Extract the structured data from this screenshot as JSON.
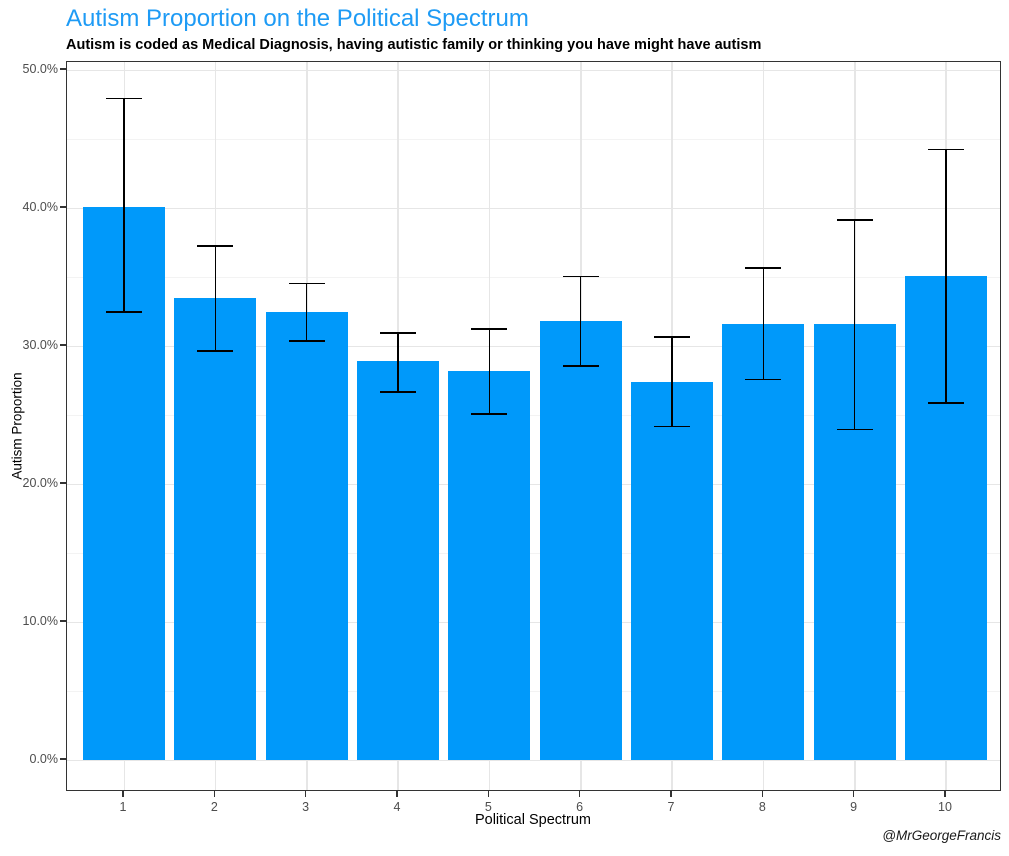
{
  "chart_data": {
    "type": "bar",
    "title": "Autism Proportion on the Political Spectrum",
    "subtitle": "Autism is coded as Medical Diagnosis, having autistic family or thinking you have might have autism",
    "xlabel": "Political Spectrum",
    "ylabel": "Autism Proportion",
    "attribution": "@MrGeorgeFrancis",
    "categories": [
      "1",
      "2",
      "3",
      "4",
      "5",
      "6",
      "7",
      "8",
      "9",
      "10"
    ],
    "values": [
      40.1,
      33.5,
      32.5,
      28.9,
      28.2,
      31.8,
      27.4,
      31.6,
      31.6,
      35.1
    ],
    "error_low": [
      32.4,
      29.6,
      30.3,
      26.6,
      25.0,
      28.5,
      24.1,
      27.5,
      23.9,
      25.8
    ],
    "error_high": [
      48.0,
      37.3,
      34.6,
      31.0,
      31.3,
      35.1,
      30.7,
      35.7,
      39.2,
      44.3
    ],
    "ylim": [
      0,
      50
    ],
    "ytick_values": [
      0,
      10,
      20,
      30,
      40,
      50
    ],
    "ytick_labels": [
      "0.0%",
      "10.0%",
      "20.0%",
      "30.0%",
      "40.0%",
      "50.0%"
    ],
    "ytick_minor_values": [
      5,
      15,
      25,
      35,
      45
    ],
    "grid": true,
    "legend": false,
    "bar_color": "#0099fa",
    "title_color": "#1e9bf5",
    "error_bar_color": "#000000"
  }
}
